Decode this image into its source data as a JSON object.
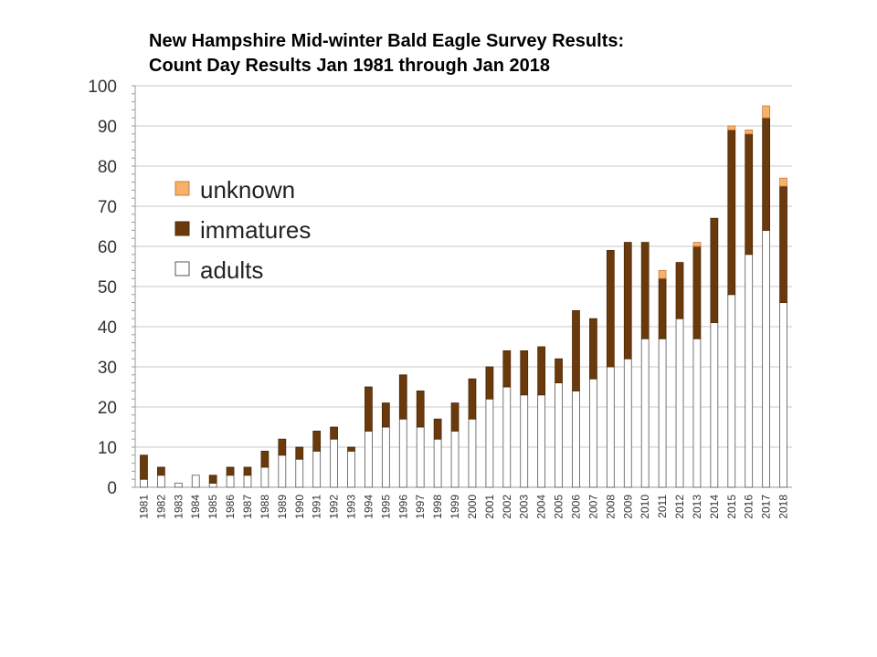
{
  "title_line1": "New Hampshire Mid-winter Bald Eagle Survey Results:",
  "title_line2": "Count Day Results Jan 1981 through Jan 2018",
  "chart_data": {
    "type": "bar",
    "stacked": true,
    "categories": [
      "1981",
      "1982",
      "1983",
      "1984",
      "1985",
      "1986",
      "1987",
      "1988",
      "1989",
      "1990",
      "1991",
      "1992",
      "1993",
      "1994",
      "1995",
      "1996",
      "1997",
      "1998",
      "1999",
      "2000",
      "2001",
      "2002",
      "2003",
      "2004",
      "2005",
      "2006",
      "2007",
      "2008",
      "2009",
      "2010",
      "2011",
      "2012",
      "2013",
      "2014",
      "2015",
      "2016",
      "2017",
      "2018"
    ],
    "series": [
      {
        "name": "adults",
        "color": "#ffffff",
        "values": [
          2,
          3,
          1,
          3,
          1,
          3,
          3,
          5,
          8,
          7,
          9,
          12,
          9,
          14,
          15,
          17,
          15,
          12,
          14,
          17,
          22,
          25,
          23,
          23,
          26,
          24,
          27,
          30,
          32,
          37,
          37,
          42,
          37,
          41,
          48,
          58,
          64,
          46
        ]
      },
      {
        "name": "immatures",
        "color": "#6b3a0c",
        "values": [
          6,
          2,
          0,
          0,
          2,
          2,
          2,
          4,
          4,
          3,
          5,
          3,
          1,
          11,
          6,
          11,
          9,
          5,
          7,
          10,
          8,
          9,
          11,
          12,
          6,
          20,
          15,
          29,
          29,
          24,
          15,
          14,
          23,
          26,
          41,
          30,
          28,
          29
        ]
      },
      {
        "name": "unknown",
        "color": "#f9b06a",
        "values": [
          0,
          0,
          0,
          0,
          0,
          0,
          0,
          0,
          0,
          0,
          0,
          0,
          0,
          0,
          0,
          0,
          0,
          0,
          0,
          0,
          0,
          0,
          0,
          0,
          0,
          0,
          0,
          0,
          0,
          0,
          2,
          0,
          1,
          0,
          1,
          1,
          3,
          2
        ]
      }
    ],
    "legend_order": [
      "unknown",
      "immatures",
      "adults"
    ],
    "legend_position": "top-left",
    "ylim": [
      0,
      100
    ],
    "yticks": [
      "0",
      "10",
      "20",
      "30",
      "40",
      "50",
      "60",
      "70",
      "80",
      "90",
      "100"
    ],
    "grid": true
  }
}
